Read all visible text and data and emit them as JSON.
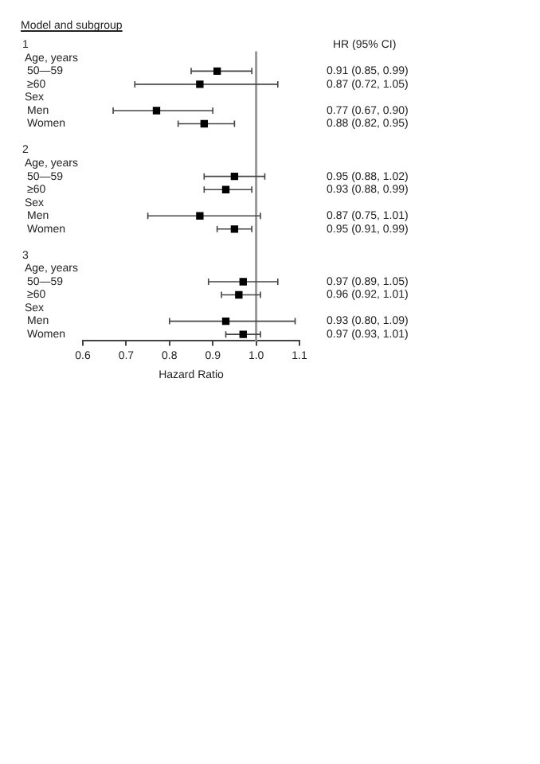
{
  "chart_data": {
    "type": "scatter",
    "orientation": "horizontal",
    "title": "Model and subgroup",
    "xlabel": "Hazard Ratio",
    "annotations": [
      "HR (95% CI)"
    ],
    "categories": [
      "1",
      "Age, years",
      "50—59",
      "≥60",
      "Sex",
      "Men",
      "Women",
      null,
      "2",
      "Age, years",
      "50—59",
      "≥60",
      "Sex",
      "Men",
      "Women",
      null,
      "3",
      "Age, years",
      "50—59",
      "≥60",
      "Sex",
      "Men",
      "Women"
    ],
    "values": [
      null,
      null,
      0.91,
      0.87,
      null,
      0.77,
      0.88,
      null,
      null,
      null,
      0.95,
      0.93,
      null,
      0.87,
      0.95,
      null,
      null,
      null,
      0.97,
      0.96,
      null,
      0.93,
      0.97
    ],
    "errors": [
      null,
      null,
      [
        0.85,
        0.99
      ],
      [
        0.72,
        1.05
      ],
      null,
      [
        0.67,
        0.9
      ],
      [
        0.82,
        0.95
      ],
      null,
      null,
      null,
      [
        0.88,
        1.02
      ],
      [
        0.88,
        0.99
      ],
      null,
      [
        0.75,
        1.01
      ],
      [
        0.91,
        0.99
      ],
      null,
      null,
      null,
      [
        0.89,
        1.05
      ],
      [
        0.92,
        1.01
      ],
      null,
      [
        0.8,
        1.09
      ],
      [
        0.93,
        1.01
      ]
    ],
    "value_labels": [
      null,
      null,
      "0.91 (0.85, 0.99)",
      "0.87 (0.72, 1.05)",
      null,
      "0.77 (0.67, 0.90)",
      "0.88 (0.82, 0.95)",
      null,
      null,
      null,
      "0.95 (0.88, 1.02)",
      "0.93 (0.88, 0.99)",
      null,
      "0.87 (0.75, 1.01)",
      "0.95 (0.91, 0.99)",
      null,
      null,
      null,
      "0.97 (0.89, 1.05)",
      "0.96 (0.92, 1.01)",
      null,
      "0.93 (0.80, 1.09)",
      "0.97 (0.93, 1.01)"
    ],
    "color": "#000000",
    "marker": "square",
    "xlim": [
      0.6,
      1.1
    ],
    "xticks": [
      0.6,
      0.7,
      0.8,
      0.9,
      {
        "value": 1,
        "label": "1.0"
      },
      1.1
    ],
    "ref_lines": [
      {
        "axis": "x",
        "value": 1,
        "color": "#999999"
      }
    ],
    "grid": false,
    "legend": false
  }
}
